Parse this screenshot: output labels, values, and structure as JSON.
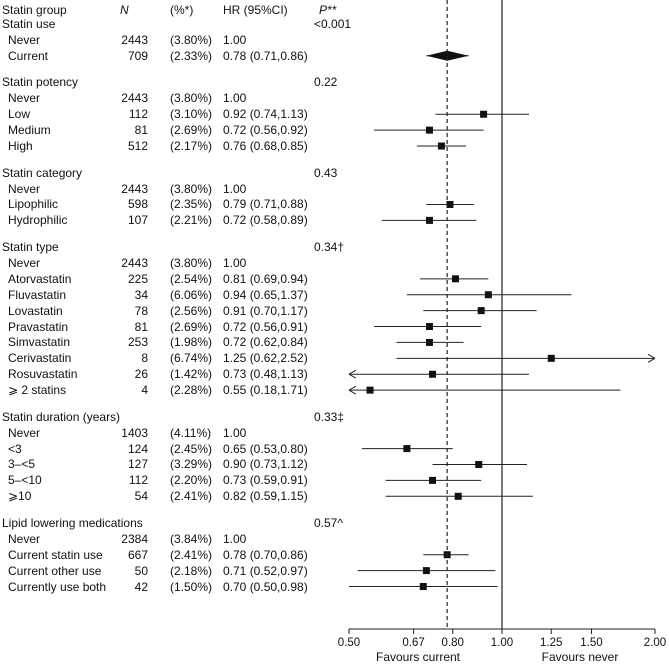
{
  "chart_data": {
    "type": "forest",
    "headers": {
      "group": "Statin group",
      "n": "N",
      "pct": "(%*)",
      "hr": "HR (95%CI)",
      "p": "P**"
    },
    "groups": [
      {
        "title": "Statin use",
        "p": "<0.001",
        "rows": [
          {
            "label": "Never",
            "n": "2443",
            "pct": "(3.80%)",
            "hr_text": "1.00",
            "hr": 1.0,
            "lo": null,
            "hi": null,
            "marker": "none"
          },
          {
            "label": "Current",
            "n": "709",
            "pct": "(2.33%)",
            "hr_text": "0.78 (0.71,0.86)",
            "hr": 0.78,
            "lo": 0.71,
            "hi": 0.86,
            "marker": "diamond"
          }
        ]
      },
      {
        "title": "Statin potency",
        "p": "0.22",
        "rows": [
          {
            "label": "Never",
            "n": "2443",
            "pct": "(3.80%)",
            "hr_text": "1.00",
            "hr": 1.0,
            "lo": null,
            "hi": null,
            "marker": "none"
          },
          {
            "label": "Low",
            "n": "112",
            "pct": "(3.10%)",
            "hr_text": "0.92 (0.74,1.13)",
            "hr": 0.92,
            "lo": 0.74,
            "hi": 1.13,
            "marker": "square"
          },
          {
            "label": "Medium",
            "n": "81",
            "pct": "(2.69%)",
            "hr_text": "0.72 (0.56,0.92)",
            "hr": 0.72,
            "lo": 0.56,
            "hi": 0.92,
            "marker": "square"
          },
          {
            "label": "High",
            "n": "512",
            "pct": "(2.17%)",
            "hr_text": "0.76 (0.68,0.85)",
            "hr": 0.76,
            "lo": 0.68,
            "hi": 0.85,
            "marker": "square"
          }
        ]
      },
      {
        "title": "Statin category",
        "p": "0.43",
        "rows": [
          {
            "label": "Never",
            "n": "2443",
            "pct": "(3.80%)",
            "hr_text": "1.00",
            "hr": 1.0,
            "lo": null,
            "hi": null,
            "marker": "none"
          },
          {
            "label": "Lipophilic",
            "n": "598",
            "pct": "(2.35%)",
            "hr_text": "0.79 (0.71,0.88)",
            "hr": 0.79,
            "lo": 0.71,
            "hi": 0.88,
            "marker": "square"
          },
          {
            "label": "Hydrophilic",
            "n": "107",
            "pct": "(2.21%)",
            "hr_text": "0.72 (0.58,0.89)",
            "hr": 0.72,
            "lo": 0.58,
            "hi": 0.89,
            "marker": "square"
          }
        ]
      },
      {
        "title": "Statin type",
        "p": "0.34†",
        "rows": [
          {
            "label": "Never",
            "n": "2443",
            "pct": "(3.80%)",
            "hr_text": "1.00",
            "hr": 1.0,
            "lo": null,
            "hi": null,
            "marker": "none"
          },
          {
            "label": "Atorvastatin",
            "n": "225",
            "pct": "(2.54%)",
            "hr_text": "0.81 (0.69,0.94)",
            "hr": 0.81,
            "lo": 0.69,
            "hi": 0.94,
            "marker": "square"
          },
          {
            "label": "Fluvastatin",
            "n": "34",
            "pct": "(6.06%)",
            "hr_text": "0.94 (0.65,1.37)",
            "hr": 0.94,
            "lo": 0.65,
            "hi": 1.37,
            "marker": "square"
          },
          {
            "label": "Lovastatin",
            "n": "78",
            "pct": "(2.56%)",
            "hr_text": "0.91 (0.70,1.17)",
            "hr": 0.91,
            "lo": 0.7,
            "hi": 1.17,
            "marker": "square"
          },
          {
            "label": "Pravastatin",
            "n": "81",
            "pct": "(2.69%)",
            "hr_text": "0.72 (0.56,0.91)",
            "hr": 0.72,
            "lo": 0.56,
            "hi": 0.91,
            "marker": "square"
          },
          {
            "label": "Simvastatin",
            "n": "253",
            "pct": "(1.98%)",
            "hr_text": "0.72 (0.62,0.84)",
            "hr": 0.72,
            "lo": 0.62,
            "hi": 0.84,
            "marker": "square"
          },
          {
            "label": "Cerivastatin",
            "n": "8",
            "pct": "(6.74%)",
            "hr_text": "1.25 (0.62,2.52)",
            "hr": 1.25,
            "lo": 0.62,
            "hi": 2.52,
            "marker": "square"
          },
          {
            "label": "Rosuvastatin",
            "n": "26",
            "pct": "(1.42%)",
            "hr_text": "0.73 (0.48,1.13)",
            "hr": 0.73,
            "lo": 0.48,
            "hi": 1.13,
            "marker": "square"
          },
          {
            "label": "⩾ 2 statins",
            "n": "4",
            "pct": "(2.28%)",
            "hr_text": "0.55 (0.18,1.71)",
            "hr": 0.55,
            "lo": 0.18,
            "hi": 1.71,
            "marker": "square"
          }
        ]
      },
      {
        "title": "Statin duration (years)",
        "p": "0.33‡",
        "rows": [
          {
            "label": "Never",
            "n": "1403",
            "pct": "(4.11%)",
            "hr_text": "1.00",
            "hr": 1.0,
            "lo": null,
            "hi": null,
            "marker": "none"
          },
          {
            "label": "<3",
            "n": "124",
            "pct": "(2.45%)",
            "hr_text": "0.65 (0.53,0.80)",
            "hr": 0.65,
            "lo": 0.53,
            "hi": 0.8,
            "marker": "square"
          },
          {
            "label": "3–<5",
            "n": "127",
            "pct": "(3.29%)",
            "hr_text": "0.90 (0.73,1.12)",
            "hr": 0.9,
            "lo": 0.73,
            "hi": 1.12,
            "marker": "square"
          },
          {
            "label": "5–<10",
            "n": "112",
            "pct": "(2.20%)",
            "hr_text": "0.73 (0.59,0.91)",
            "hr": 0.73,
            "lo": 0.59,
            "hi": 0.91,
            "marker": "square"
          },
          {
            "label": "⩾10",
            "n": "54",
            "pct": "(2.41%)",
            "hr_text": "0.82 (0.59,1.15)",
            "hr": 0.82,
            "lo": 0.59,
            "hi": 1.15,
            "marker": "square"
          }
        ]
      },
      {
        "title": "Lipid lowering medications",
        "p": "0.57^",
        "rows": [
          {
            "label": "Never",
            "n": "2384",
            "pct": "(3.84%)",
            "hr_text": "1.00",
            "hr": 1.0,
            "lo": null,
            "hi": null,
            "marker": "none"
          },
          {
            "label": "Current statin use",
            "n": "667",
            "pct": "(2.41%)",
            "hr_text": "0.78 (0.70,0.86)",
            "hr": 0.78,
            "lo": 0.7,
            "hi": 0.86,
            "marker": "square"
          },
          {
            "label": "Current other use",
            "n": "50",
            "pct": "(2.18%)",
            "hr_text": "0.71 (0.52,0.97)",
            "hr": 0.71,
            "lo": 0.52,
            "hi": 0.97,
            "marker": "square"
          },
          {
            "label": "Currently use both",
            "n": "42",
            "pct": "(1.50%)",
            "hr_text": "0.70 (0.50,0.98)",
            "hr": 0.7,
            "lo": 0.5,
            "hi": 0.98,
            "marker": "square"
          }
        ]
      }
    ],
    "x_axis": {
      "scale": "log",
      "ticks": [
        0.5,
        0.67,
        0.8,
        1.0,
        1.25,
        1.5,
        2.0
      ],
      "tick_labels": [
        "0.50",
        "0.67",
        "0.80",
        "1.00",
        "1.25",
        "1.50",
        "2.00"
      ],
      "xlim": [
        0.5,
        2.0
      ]
    },
    "reference_line": 1.0,
    "overall_line": 0.78,
    "footer_left": "Favours current",
    "footer_right": "Favours never"
  }
}
